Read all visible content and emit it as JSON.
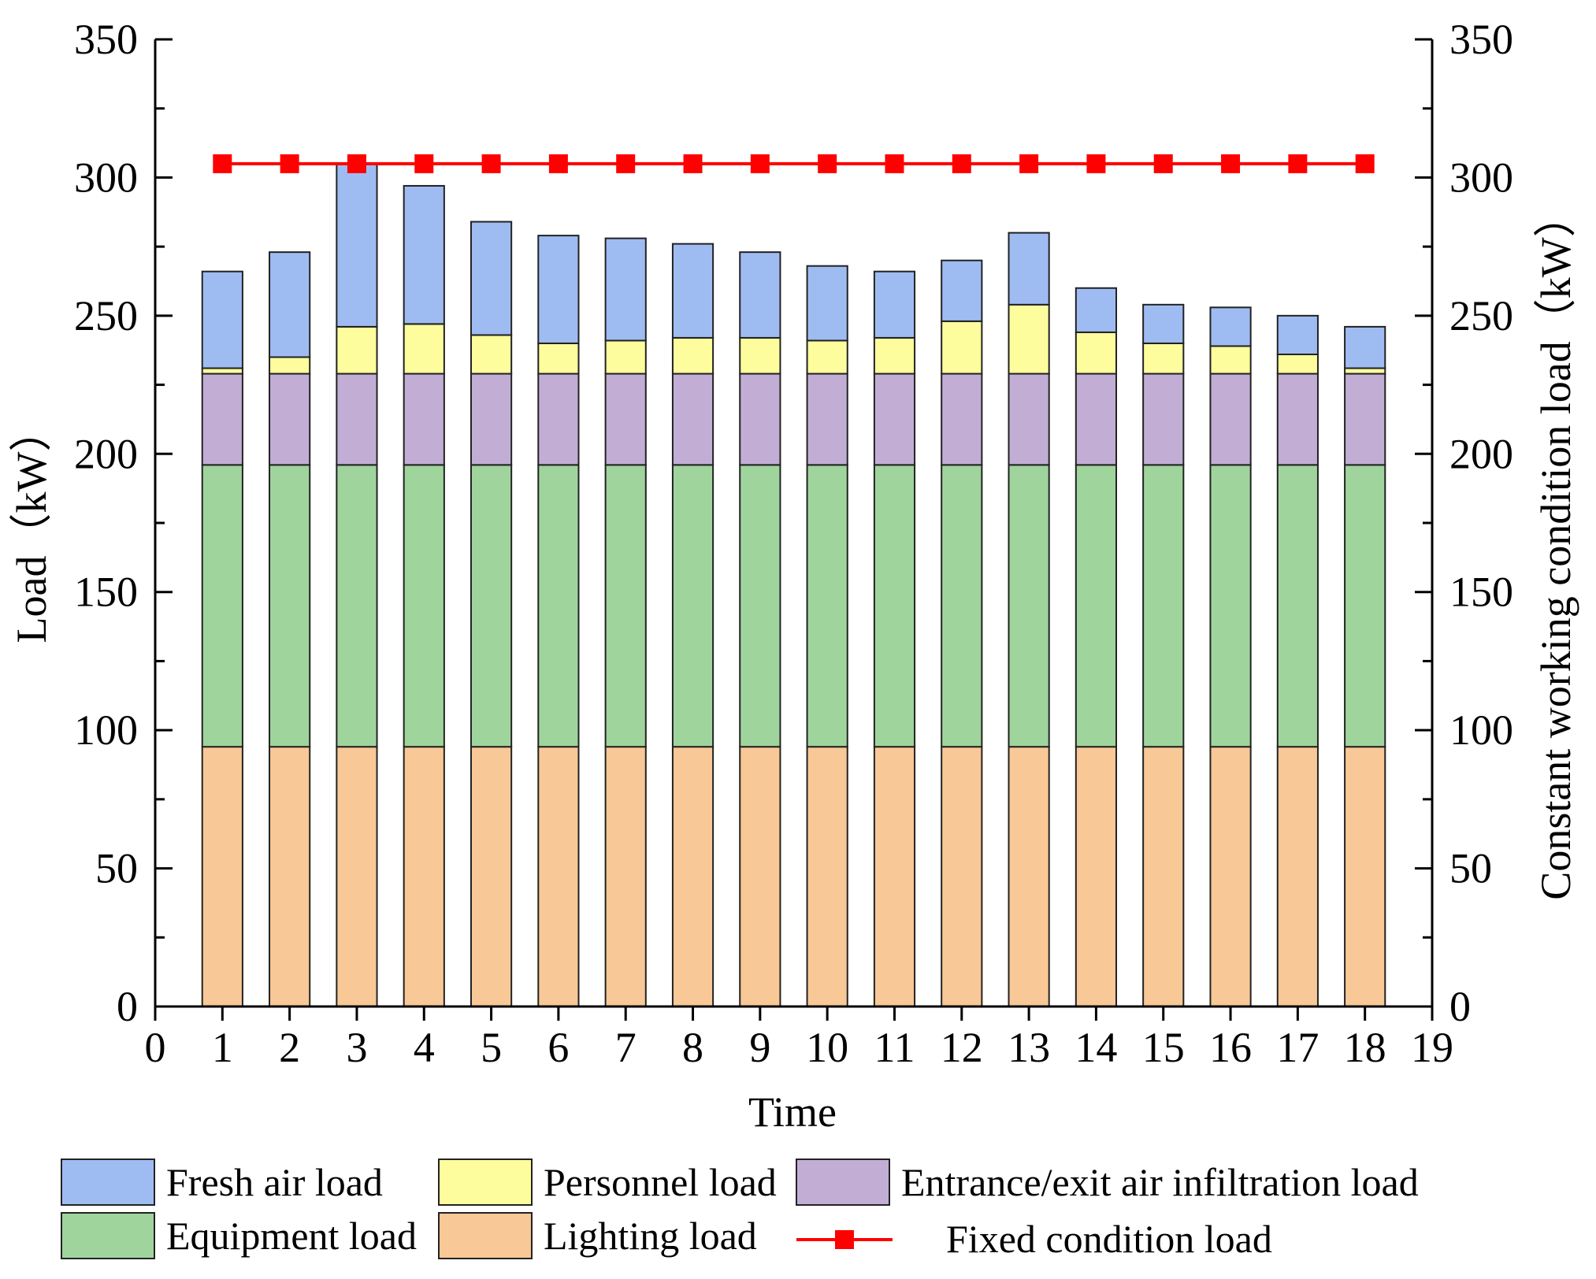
{
  "chart_data": {
    "type": "bar",
    "stacked": true,
    "title": "",
    "xlabel": "Time",
    "ylabel": "Load（kW）",
    "y2label": "Constant working condition load（kW）",
    "xlim": [
      0,
      19
    ],
    "ylim": [
      0,
      350
    ],
    "y2lim": [
      0,
      350
    ],
    "x_ticks": [
      "0",
      "1",
      "2",
      "3",
      "4",
      "5",
      "6",
      "7",
      "8",
      "9",
      "10",
      "11",
      "12",
      "13",
      "14",
      "15",
      "16",
      "17",
      "18",
      "19"
    ],
    "y_ticks": [
      "0",
      "50",
      "100",
      "150",
      "200",
      "250",
      "300",
      "350"
    ],
    "y2_ticks": [
      "0",
      "50",
      "100",
      "150",
      "200",
      "250",
      "300",
      "350"
    ],
    "categories": [
      1,
      2,
      3,
      4,
      5,
      6,
      7,
      8,
      9,
      10,
      11,
      12,
      13,
      14,
      15,
      16,
      17,
      18
    ],
    "series": [
      {
        "name": "Lighting load",
        "color": "#f8c896",
        "values": [
          94,
          94,
          94,
          94,
          94,
          94,
          94,
          94,
          94,
          94,
          94,
          94,
          94,
          94,
          94,
          94,
          94,
          94
        ]
      },
      {
        "name": "Equipment load",
        "color": "#9fd59c",
        "values": [
          102,
          102,
          102,
          102,
          102,
          102,
          102,
          102,
          102,
          102,
          102,
          102,
          102,
          102,
          102,
          102,
          102,
          102
        ]
      },
      {
        "name": "Entrance/exit air infiltration load",
        "color": "#c2aed5",
        "values": [
          33,
          33,
          33,
          33,
          33,
          33,
          33,
          33,
          33,
          33,
          33,
          33,
          33,
          33,
          33,
          33,
          33,
          33
        ]
      },
      {
        "name": "Personnel load",
        "color": "#fdfd9e",
        "values": [
          2,
          6,
          17,
          18,
          14,
          11,
          12,
          13,
          13,
          12,
          13,
          19,
          25,
          15,
          11,
          10,
          7,
          2
        ]
      },
      {
        "name": "Fresh air load",
        "color": "#9fbcf2",
        "values": [
          35,
          38,
          59,
          50,
          41,
          39,
          37,
          34,
          31,
          27,
          24,
          22,
          26,
          16,
          14,
          14,
          14,
          15
        ]
      }
    ],
    "line_series": {
      "name": "Fixed condition load",
      "color": "#ff0000",
      "value": 305,
      "x": [
        1,
        2,
        3,
        4,
        5,
        6,
        7,
        8,
        9,
        10,
        11,
        12,
        13,
        14,
        15,
        16,
        17,
        18
      ]
    },
    "legend": {
      "placement": "bottom",
      "items": [
        "Fresh air load",
        "Personnel load",
        "Entrance/exit air infiltration load",
        "Equipment load",
        "Lighting load",
        "Fixed condition load"
      ]
    }
  }
}
